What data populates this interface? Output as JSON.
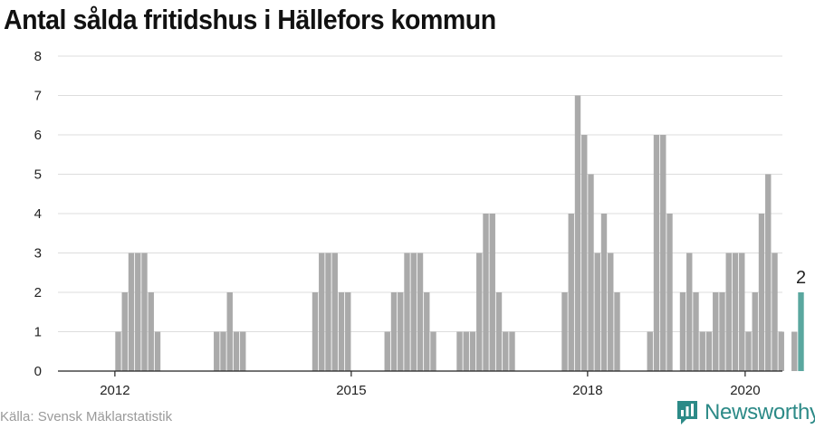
{
  "chart_data": {
    "type": "bar",
    "title": "Antal sålda fritidshus i Hällefors kommun",
    "xlabel": "",
    "ylabel": "",
    "ylim": [
      0,
      8
    ],
    "yticks": [
      0,
      1,
      2,
      3,
      4,
      5,
      6,
      7,
      8
    ],
    "xticks": [
      "2012",
      "2015",
      "2018",
      "2020"
    ],
    "grid": true,
    "start_month": "2011-08",
    "values": [
      0,
      0,
      0,
      0,
      0,
      1,
      2,
      3,
      3,
      3,
      2,
      1,
      0,
      0,
      0,
      0,
      0,
      0,
      0,
      0,
      1,
      1,
      2,
      1,
      1,
      0,
      0,
      0,
      0,
      0,
      0,
      0,
      0,
      0,
      0,
      2,
      3,
      3,
      3,
      2,
      2,
      0,
      0,
      0,
      0,
      0,
      1,
      2,
      2,
      3,
      3,
      3,
      2,
      1,
      0,
      0,
      0,
      1,
      1,
      1,
      3,
      4,
      4,
      2,
      1,
      1,
      0,
      0,
      0,
      0,
      0,
      0,
      0,
      2,
      4,
      7,
      6,
      5,
      3,
      4,
      3,
      2,
      0,
      0,
      0,
      0,
      1,
      6,
      6,
      4,
      0,
      2,
      3,
      2,
      1,
      1,
      2,
      2,
      3,
      3,
      3,
      1,
      2,
      4,
      5,
      3,
      1,
      0,
      1,
      2
    ],
    "highlight_index": 109,
    "highlight_label": "2",
    "colors": {
      "bar": "#aaaaaa",
      "highlight": "#5aa79f",
      "grid": "#dddddd",
      "axis": "#222222"
    }
  },
  "source": "Källa: Svensk Mäklarstatistik",
  "brand": {
    "name": "Newsworthy",
    "icon": "newsworthy-logo-icon",
    "color": "#2c8a87"
  }
}
